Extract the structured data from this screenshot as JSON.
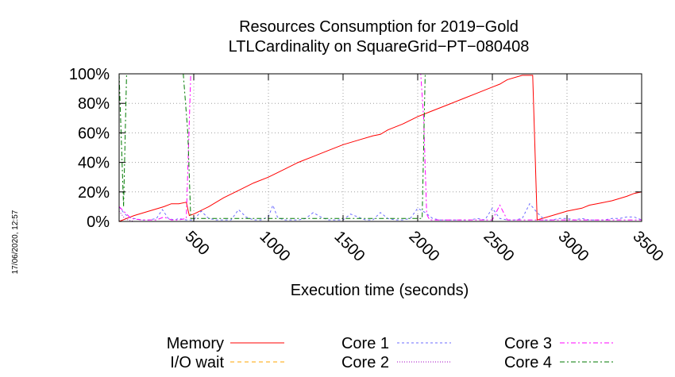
{
  "chart_data": {
    "type": "line",
    "title_line1": "Resources Consumption for 2019−Gold",
    "title_line2": "LTLCardinality on SquareGrid−PT−080408",
    "xlabel": "Execution time (seconds)",
    "ylabel": "",
    "xlim": [
      0,
      3500
    ],
    "ylim": [
      0,
      100
    ],
    "x_ticks": [
      500,
      1000,
      1500,
      2000,
      2500,
      3000,
      3500
    ],
    "x_tick_labels": [
      "500",
      "1000",
      "1500",
      "2000",
      "2500",
      "3000",
      "3500"
    ],
    "y_ticks": [
      0,
      20,
      40,
      60,
      80,
      100
    ],
    "y_tick_labels": [
      "0%",
      "20%",
      "40%",
      "60%",
      "80%",
      "100%"
    ],
    "grid": true,
    "legend_position": "bottom",
    "timestamp": "17/06/2020, 12:57",
    "series": [
      {
        "name": "Memory",
        "color": "#ff0000",
        "dash": "",
        "x": [
          0,
          100,
          200,
          300,
          350,
          400,
          450,
          470,
          500,
          600,
          700,
          800,
          900,
          1000,
          1100,
          1200,
          1300,
          1400,
          1500,
          1600,
          1700,
          1750,
          1800,
          1900,
          2000,
          2100,
          2200,
          2300,
          2400,
          2500,
          2550,
          2600,
          2700,
          2770,
          2800,
          2900,
          3000,
          3100,
          3150,
          3200,
          3300,
          3400,
          3450,
          3500
        ],
        "y": [
          0,
          4,
          7,
          10,
          12,
          12,
          13,
          4,
          5,
          10,
          16,
          21,
          26,
          30,
          35,
          40,
          44,
          48,
          52,
          55,
          58,
          59,
          62,
          66,
          71,
          75,
          79,
          83,
          87,
          91,
          93,
          96,
          99,
          99,
          1,
          4,
          7,
          9,
          11,
          12,
          14,
          17,
          19,
          20
        ]
      },
      {
        "name": "I/O wait",
        "color": "#ffa500",
        "dash": "5,4",
        "x": [
          0,
          3500
        ],
        "y": [
          0,
          0
        ]
      },
      {
        "name": "Core 1",
        "color": "#6b6bff",
        "dash": "3,3",
        "x": [
          0,
          30,
          60,
          100,
          150,
          200,
          250,
          290,
          330,
          370,
          400,
          450,
          500,
          550,
          600,
          650,
          700,
          750,
          800,
          850,
          900,
          950,
          1000,
          1030,
          1060,
          1100,
          1150,
          1200,
          1250,
          1300,
          1350,
          1400,
          1450,
          1500,
          1550,
          1600,
          1650,
          1700,
          1750,
          1800,
          1850,
          1900,
          1950,
          2000,
          2050,
          2100,
          2150,
          2200,
          2250,
          2300,
          2350,
          2400,
          2450,
          2500,
          2550,
          2600,
          2650,
          2700,
          2750,
          2800,
          2850,
          2900,
          2950,
          3000,
          3050,
          3100,
          3150,
          3200,
          3250,
          3300,
          3350,
          3400,
          3450,
          3500
        ],
        "y": [
          10,
          6,
          3,
          2,
          1,
          1,
          2,
          8,
          2,
          1,
          2,
          1,
          1,
          7,
          2,
          1,
          1,
          1,
          8,
          3,
          1,
          1,
          3,
          11,
          3,
          1,
          1,
          1,
          2,
          6,
          3,
          1,
          1,
          1,
          5,
          3,
          1,
          1,
          6,
          2,
          1,
          1,
          2,
          9,
          6,
          2,
          1,
          1,
          1,
          1,
          1,
          2,
          1,
          9,
          2,
          1,
          1,
          2,
          12,
          6,
          1,
          1,
          2,
          2,
          1,
          2,
          1,
          1,
          1,
          2,
          2,
          3,
          3,
          1
        ]
      },
      {
        "name": "Core 2",
        "color": "#a000c0",
        "dash": "1,2",
        "x": [
          0,
          30,
          60,
          100,
          3500
        ],
        "y": [
          7,
          3,
          1,
          0,
          0
        ]
      },
      {
        "name": "Core 3",
        "color": "#ff00ff",
        "dash": "6,3,2,3",
        "x": [
          0,
          80,
          150,
          200,
          250,
          300,
          350,
          400,
          450,
          465,
          480,
          500,
          2020,
          2040,
          2060,
          2080,
          2100,
          2200,
          2300,
          2400,
          2500,
          2550,
          2600,
          2700,
          2800,
          2900,
          3000,
          3100,
          3200,
          3300,
          3400,
          3500
        ],
        "y": [
          10,
          2,
          1,
          1,
          1,
          3,
          1,
          1,
          2,
          50,
          100,
          100,
          100,
          70,
          5,
          1,
          1,
          1,
          1,
          1,
          1,
          11,
          1,
          1,
          1,
          1,
          1,
          1,
          1,
          1,
          1,
          1
        ]
      },
      {
        "name": "Core 4",
        "color": "#007a00",
        "dash": "6,3,2,3",
        "x": [
          0,
          30,
          50,
          430,
          460,
          480,
          500,
          2000,
          2030,
          2050,
          2100,
          3500
        ],
        "y": [
          100,
          10,
          100,
          100,
          60,
          2,
          2,
          2,
          2,
          100,
          100,
          100
        ]
      }
    ]
  }
}
